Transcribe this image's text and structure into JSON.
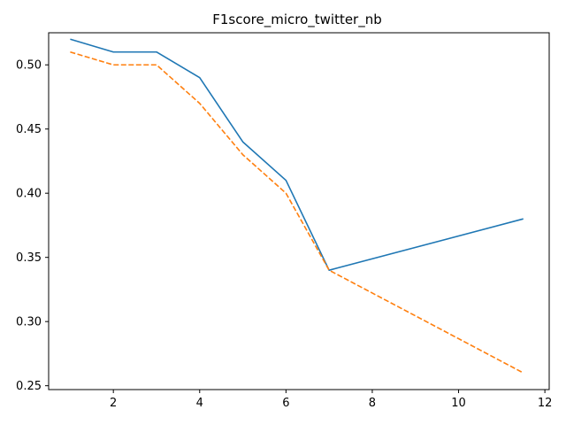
{
  "chart_data": {
    "type": "line",
    "title": "F1score_micro_twitter_nb",
    "xlabel": "",
    "ylabel": "",
    "xlim": [
      0.5,
      12.1
    ],
    "ylim": [
      0.247,
      0.525
    ],
    "xticks": [
      2,
      4,
      6,
      8,
      10,
      12
    ],
    "yticks": [
      0.25,
      0.3,
      0.35,
      0.4,
      0.45,
      0.5
    ],
    "xtick_labels": [
      "2",
      "4",
      "6",
      "8",
      "10",
      "12"
    ],
    "ytick_labels": [
      "0.25",
      "0.30",
      "0.35",
      "0.40",
      "0.45",
      "0.50"
    ],
    "grid": false,
    "legend": "none",
    "series": [
      {
        "color": "#1f77b4",
        "style": "solid",
        "x": [
          1,
          2,
          3,
          4,
          5,
          6,
          7,
          11.5
        ],
        "y": [
          0.52,
          0.51,
          0.51,
          0.49,
          0.44,
          0.41,
          0.34,
          0.38
        ]
      },
      {
        "color": "#ff7f0e",
        "style": "dashed",
        "x": [
          1,
          2,
          3,
          4,
          5,
          6,
          7,
          11.5
        ],
        "y": [
          0.51,
          0.5,
          0.5,
          0.47,
          0.43,
          0.4,
          0.34,
          0.26
        ]
      }
    ]
  }
}
